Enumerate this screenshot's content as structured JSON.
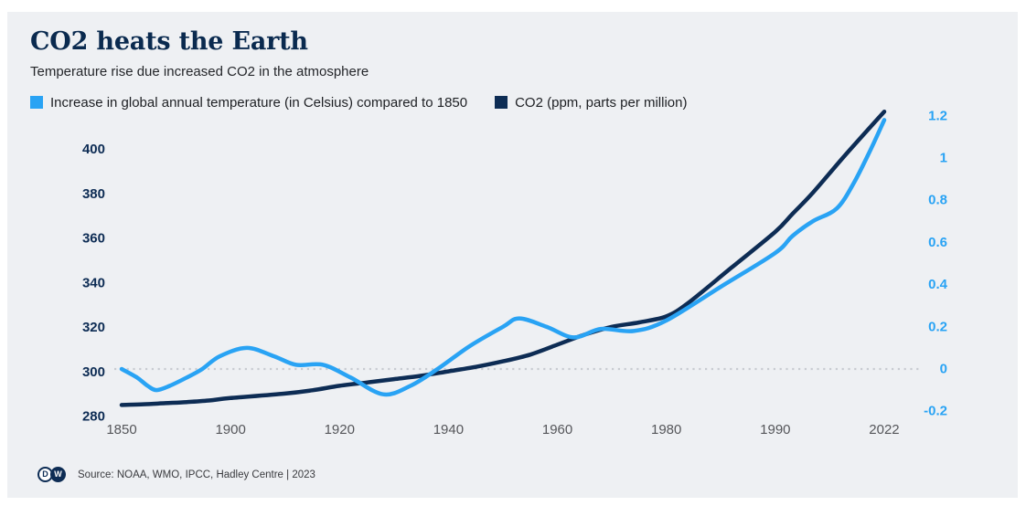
{
  "header": {
    "title": "CO2 heats the Earth",
    "subtitle": "Temperature rise due increased CO2 in the atmosphere"
  },
  "legend": {
    "items": [
      {
        "label": "Increase in global annual temperature (in Celsius) compared to 1850",
        "color": "#29a3f4"
      },
      {
        "label": "CO2 (ppm, parts per million)",
        "color": "#0d2c54"
      }
    ]
  },
  "footer": {
    "logo_letters": [
      "D",
      "W"
    ],
    "source": "Source: NOAA, WMO, IPCC, Hadley Centre | 2023"
  },
  "colors": {
    "card_background": "#eef0f3",
    "navy": "#0d2c54",
    "light_blue": "#29a3f4",
    "x_tick_gray": "#55565a",
    "zero_line_gray": "#c8cbd1"
  },
  "chart_data": {
    "type": "line",
    "title": "CO2 heats the Earth",
    "subtitle": "Temperature rise due increased CO2 in the atmosphere",
    "grid": "off",
    "legend_position": "top",
    "x_axis": {
      "tick_years": [
        1850,
        1900,
        1920,
        1940,
        1960,
        1980,
        1990,
        2022
      ],
      "note": "tick labels evenly spaced although year intervals are unequal"
    },
    "y_left": {
      "label": "CO2 (ppm, parts per million)",
      "ticks": [
        280,
        300,
        320,
        340,
        360,
        380,
        400
      ],
      "range": [
        278,
        418
      ],
      "color": "#0d2c54"
    },
    "y_right": {
      "label": "Increase in global annual temperature (in Celsius) compared to 1850",
      "ticks": [
        -0.2,
        0,
        0.2,
        0.4,
        0.6,
        0.8,
        1,
        1.2
      ],
      "range": [
        -0.25,
        1.25
      ],
      "color": "#29a3f4"
    },
    "zero_line": {
      "axis": "right",
      "value": 0,
      "style": "dotted"
    },
    "series": [
      {
        "name": "Increase in global annual temperature (in Celsius) compared to 1850",
        "axis": "right",
        "color": "#29a3f4",
        "points": [
          [
            1850,
            0
          ],
          [
            1857,
            -0.04
          ],
          [
            1862,
            -0.08
          ],
          [
            1866,
            -0.1
          ],
          [
            1872,
            -0.08
          ],
          [
            1880,
            -0.04
          ],
          [
            1887,
            0
          ],
          [
            1895,
            0.06
          ],
          [
            1903,
            0.1
          ],
          [
            1908,
            0.06
          ],
          [
            1912,
            0.02
          ],
          [
            1917,
            0.02
          ],
          [
            1922,
            -0.04
          ],
          [
            1928,
            -0.12
          ],
          [
            1933,
            -0.08
          ],
          [
            1938,
            0
          ],
          [
            1944,
            0.11
          ],
          [
            1950,
            0.2
          ],
          [
            1953,
            0.24
          ],
          [
            1958,
            0.2
          ],
          [
            1963,
            0.15
          ],
          [
            1968,
            0.19
          ],
          [
            1974,
            0.18
          ],
          [
            1980,
            0.23
          ],
          [
            1985,
            0.39
          ],
          [
            1990,
            0.55
          ],
          [
            1995,
            0.63
          ],
          [
            2001,
            0.7
          ],
          [
            2008,
            0.76
          ],
          [
            2013,
            0.88
          ],
          [
            2018,
            1.04
          ],
          [
            2022,
            1.18
          ]
        ]
      },
      {
        "name": "CO2 (ppm, parts per million)",
        "axis": "left",
        "color": "#0d2c54",
        "points": [
          [
            1850,
            285.2
          ],
          [
            1860,
            285.5
          ],
          [
            1870,
            286
          ],
          [
            1880,
            286.5
          ],
          [
            1890,
            287.2
          ],
          [
            1900,
            288.3
          ],
          [
            1910,
            290.3
          ],
          [
            1915,
            291.8
          ],
          [
            1920,
            293.8
          ],
          [
            1925,
            295.3
          ],
          [
            1930,
            296.8
          ],
          [
            1935,
            298.3
          ],
          [
            1940,
            300.3
          ],
          [
            1945,
            302.3
          ],
          [
            1950,
            304.8
          ],
          [
            1955,
            307.8
          ],
          [
            1960,
            312.3
          ],
          [
            1965,
            316.8
          ],
          [
            1970,
            320.3
          ],
          [
            1975,
            322.3
          ],
          [
            1980,
            325
          ],
          [
            1982,
            331
          ],
          [
            1986,
            347
          ],
          [
            1990,
            363
          ],
          [
            1995,
            371
          ],
          [
            2001,
            380.5
          ],
          [
            2010,
            396.5
          ],
          [
            2022,
            417
          ]
        ]
      }
    ]
  }
}
